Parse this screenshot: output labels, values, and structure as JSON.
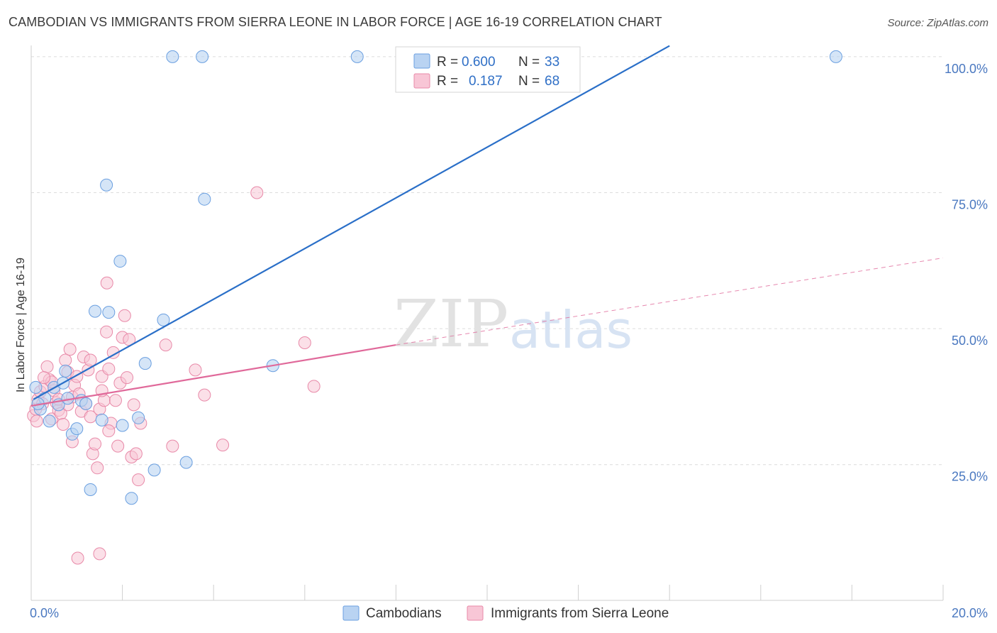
{
  "title": "CAMBODIAN VS IMMIGRANTS FROM SIERRA LEONE IN LABOR FORCE | AGE 16-19 CORRELATION CHART",
  "source": "Source: ZipAtlas.com",
  "watermark": {
    "zip": "ZIP",
    "atlas": "atlas"
  },
  "legend": {
    "r_label": "R =",
    "n_label": "N =",
    "rows": [
      {
        "r": "0.600",
        "n": "33"
      },
      {
        "r": "0.187",
        "n": "68"
      }
    ]
  },
  "colors": {
    "blue_fill": "#b9d3f2",
    "blue_stroke": "#6a9fe0",
    "blue_line": "#2a6fc8",
    "pink_fill": "#f8c6d6",
    "pink_stroke": "#e889a8",
    "pink_line": "#e0699a",
    "grid": "#dcdcdc"
  },
  "chart_data": {
    "type": "scatter",
    "title": "CAMBODIAN VS IMMIGRANTS FROM SIERRA LEONE IN LABOR FORCE | AGE 16-19 CORRELATION CHART",
    "xlabel": "",
    "ylabel": "In Labor Force | Age 16-19",
    "xlim": [
      0,
      20
    ],
    "ylim": [
      0,
      102
    ],
    "x_tick_labels": [
      {
        "value": 0,
        "label": "0.0%"
      },
      {
        "value": 20,
        "label": "20.0%"
      }
    ],
    "y_tick_labels": [
      {
        "value": 25,
        "label": "25.0%"
      },
      {
        "value": 50,
        "label": "50.0%"
      },
      {
        "value": 75,
        "label": "75.0%"
      },
      {
        "value": 100,
        "label": "100.0%"
      }
    ],
    "series": [
      {
        "name": "Cambodians",
        "r": 0.6,
        "n": 33,
        "trend": {
          "x0": 0.05,
          "y0": 37,
          "x1": 14.0,
          "y1": 102
        },
        "points": [
          [
            0.1,
            39.2
          ],
          [
            0.2,
            35.2
          ],
          [
            0.3,
            37.2
          ],
          [
            0.4,
            33.0
          ],
          [
            0.5,
            39.2
          ],
          [
            0.6,
            36.0
          ],
          [
            0.7,
            40.0
          ],
          [
            0.75,
            42.2
          ],
          [
            0.8,
            37.2
          ],
          [
            0.9,
            30.6
          ],
          [
            1.0,
            31.6
          ],
          [
            1.1,
            36.8
          ],
          [
            1.2,
            36.2
          ],
          [
            1.3,
            20.4
          ],
          [
            1.4,
            53.2
          ],
          [
            1.55,
            33.2
          ],
          [
            1.65,
            76.4
          ],
          [
            1.7,
            53.0
          ],
          [
            1.95,
            62.4
          ],
          [
            2.0,
            32.2
          ],
          [
            2.2,
            18.8
          ],
          [
            2.35,
            33.6
          ],
          [
            2.5,
            43.6
          ],
          [
            2.7,
            24.0
          ],
          [
            2.9,
            51.6
          ],
          [
            3.1,
            100.0
          ],
          [
            3.4,
            25.4
          ],
          [
            3.75,
            100.0
          ],
          [
            3.8,
            73.8
          ],
          [
            5.3,
            43.2
          ],
          [
            7.15,
            100.0
          ],
          [
            17.65,
            100.0
          ],
          [
            0.15,
            36.2
          ]
        ]
      },
      {
        "name": "Immigrants from Sierra Leone",
        "r": 0.187,
        "n": 68,
        "trend_solid": {
          "x0": 0.0,
          "y0": 35.8,
          "x1": 8.0,
          "y1": 47.0
        },
        "trend_dashed": {
          "x0": 8.0,
          "y0": 47.0,
          "x1": 20.0,
          "y1": 63.0
        },
        "points": [
          [
            0.05,
            34.0
          ],
          [
            0.1,
            35.2
          ],
          [
            0.15,
            37.0
          ],
          [
            0.2,
            38.4
          ],
          [
            0.25,
            36.2
          ],
          [
            0.3,
            39.4
          ],
          [
            0.35,
            43.0
          ],
          [
            0.4,
            40.6
          ],
          [
            0.45,
            33.4
          ],
          [
            0.5,
            38.6
          ],
          [
            0.55,
            36.4
          ],
          [
            0.6,
            35.0
          ],
          [
            0.65,
            34.4
          ],
          [
            0.7,
            32.4
          ],
          [
            0.75,
            44.2
          ],
          [
            0.8,
            42.0
          ],
          [
            0.85,
            46.2
          ],
          [
            0.9,
            37.4
          ],
          [
            0.95,
            39.6
          ],
          [
            1.0,
            41.2
          ],
          [
            1.05,
            38.0
          ],
          [
            1.1,
            34.8
          ],
          [
            1.15,
            44.8
          ],
          [
            1.2,
            36.2
          ],
          [
            1.25,
            42.4
          ],
          [
            1.3,
            33.8
          ],
          [
            1.35,
            27.0
          ],
          [
            1.4,
            28.8
          ],
          [
            1.45,
            24.4
          ],
          [
            1.5,
            35.2
          ],
          [
            1.55,
            41.2
          ],
          [
            1.6,
            36.8
          ],
          [
            1.65,
            49.4
          ],
          [
            1.7,
            42.6
          ],
          [
            1.75,
            32.6
          ],
          [
            1.8,
            45.6
          ],
          [
            1.85,
            36.8
          ],
          [
            1.9,
            28.4
          ],
          [
            1.95,
            40.0
          ],
          [
            2.0,
            48.4
          ],
          [
            2.05,
            52.4
          ],
          [
            2.1,
            41.0
          ],
          [
            2.15,
            48.0
          ],
          [
            2.2,
            26.4
          ],
          [
            2.25,
            36.0
          ],
          [
            2.3,
            27.0
          ],
          [
            2.35,
            22.2
          ],
          [
            2.4,
            32.6
          ],
          [
            1.66,
            58.4
          ],
          [
            2.95,
            47.0
          ],
          [
            3.1,
            28.4
          ],
          [
            3.6,
            42.4
          ],
          [
            3.8,
            37.8
          ],
          [
            4.2,
            28.6
          ],
          [
            4.95,
            75.0
          ],
          [
            6.0,
            47.4
          ],
          [
            6.2,
            39.4
          ],
          [
            1.02,
            7.8
          ],
          [
            1.5,
            8.6
          ],
          [
            0.6,
            37.0
          ],
          [
            0.45,
            40.2
          ],
          [
            1.3,
            44.2
          ],
          [
            0.9,
            29.2
          ],
          [
            1.7,
            31.2
          ],
          [
            0.8,
            36.0
          ],
          [
            0.28,
            41.0
          ],
          [
            1.55,
            38.6
          ],
          [
            0.12,
            33.0
          ]
        ]
      }
    ]
  },
  "bottom_legend": [
    "Cambodians",
    "Immigrants from Sierra Leone"
  ]
}
